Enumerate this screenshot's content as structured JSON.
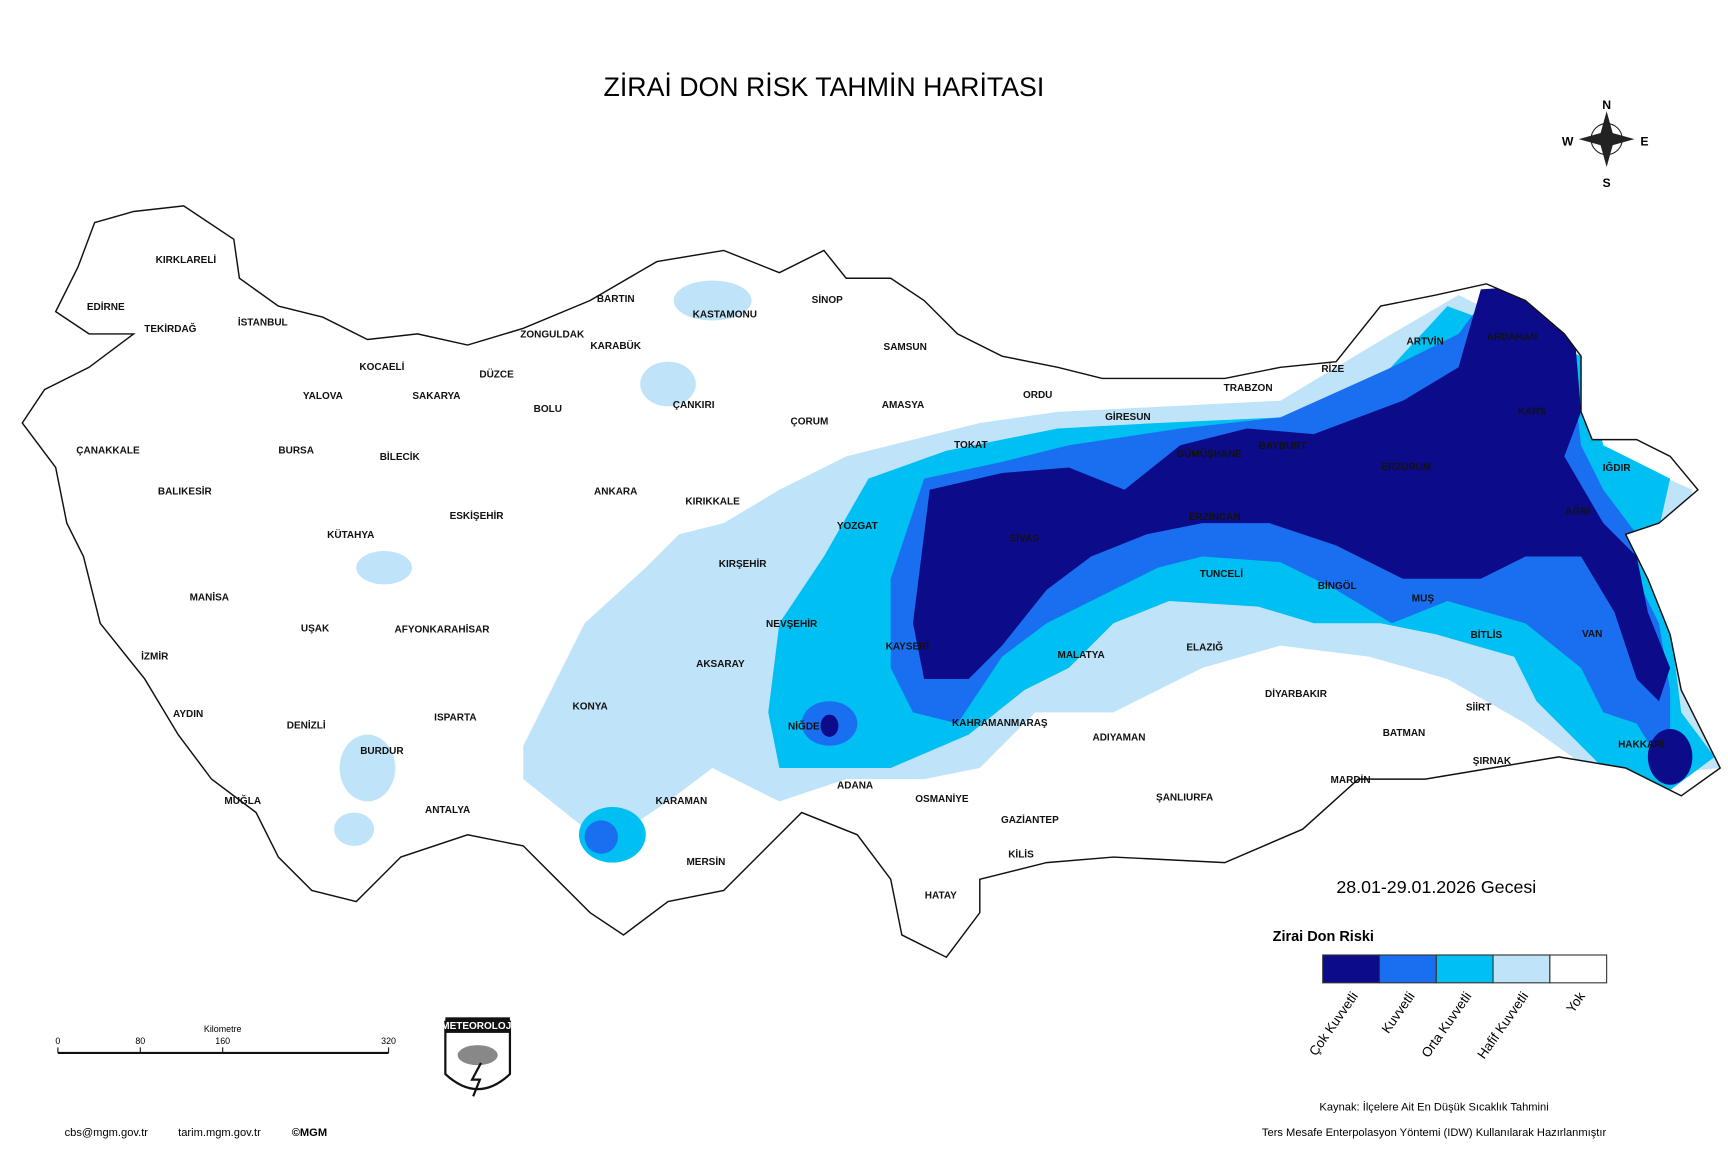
{
  "title": "ZİRAİ DON RİSK TAHMİN HARİTASI",
  "compass": {
    "n": "N",
    "e": "E",
    "s": "S",
    "w": "W"
  },
  "provinces": [
    "KIRKLARELİ",
    "EDİRNE",
    "TEKİRDAĞ",
    "İSTANBUL",
    "KOCAELİ",
    "YALOVA",
    "SAKARYA",
    "DÜZCE",
    "ZONGULDAK",
    "BARTIN",
    "KARABÜK",
    "KASTAMONU",
    "SİNOP",
    "SAMSUN",
    "ÇANAKKALE",
    "BURSA",
    "BİLECİK",
    "BOLU",
    "ÇANKIRI",
    "ÇORUM",
    "AMASYA",
    "ORDU",
    "GİRESUN",
    "TRABZON",
    "RİZE",
    "ARTVİN",
    "ARDAHAN",
    "KARS",
    "IĞDIR",
    "AĞRI",
    "ERZURUM",
    "BAYBURT",
    "GÜMÜŞHANE",
    "ERZİNCAN",
    "TOKAT",
    "SİVAS",
    "YOZGAT",
    "BALIKESİR",
    "ESKİŞEHİR",
    "ANKARA",
    "KIRIKKALE",
    "KÜTAHYA",
    "KIRŞEHİR",
    "MANİSA",
    "UŞAK",
    "AFYONKARAHİSAR",
    "NEVŞEHİR",
    "KAYSERİ",
    "TUNCELİ",
    "BİNGÖL",
    "MUŞ",
    "BİTLİS",
    "VAN",
    "ELAZIĞ",
    "MALATYA",
    "İZMİR",
    "AKSARAY",
    "DİYARBAKIR",
    "SİİRT",
    "AYDIN",
    "DENİZLİ",
    "ISPARTA",
    "KONYA",
    "NİĞDE",
    "KAHRAMANMARAŞ",
    "ADIYAMAN",
    "BATMAN",
    "HAKKARİ",
    "ŞIRNAK",
    "BURDUR",
    "MARDİN",
    "ADANA",
    "OSMANİYE",
    "ŞANLIURFA",
    "MUĞLA",
    "ANTALYA",
    "KARAMAN",
    "GAZİANTEP",
    "KİLİS",
    "MERSİN",
    "HATAY"
  ],
  "date": "28.01-29.01.2026 Gecesi",
  "legend": {
    "title": "Zirai Don Riski",
    "items": [
      {
        "label": "Çok Kuvvetli",
        "color": "#0c0c8a"
      },
      {
        "label": "Kuvvetli",
        "color": "#1a6ff0"
      },
      {
        "label": "Orta Kuvvetli",
        "color": "#00bff2"
      },
      {
        "label": "Hafif Kuvvetli",
        "color": "#bfe4fa"
      },
      {
        "label": "Yok",
        "color": "#ffffff"
      }
    ]
  },
  "scale": {
    "unit": "Kilometre",
    "ticks": [
      "0",
      "80",
      "160",
      "320"
    ]
  },
  "logo": "METEOROLOJİ",
  "footer": [
    "cbs@mgm.gov.tr",
    "tarim.mgm.gov.tr",
    "©MGM"
  ],
  "source": [
    "Kaynak: İlçelere Ait En Düşük Sıcaklık Tahmini",
    "Ters Mesafe Enterpolasyon Yöntemi (IDW) Kullanılarak Hazırlanmıştır"
  ]
}
